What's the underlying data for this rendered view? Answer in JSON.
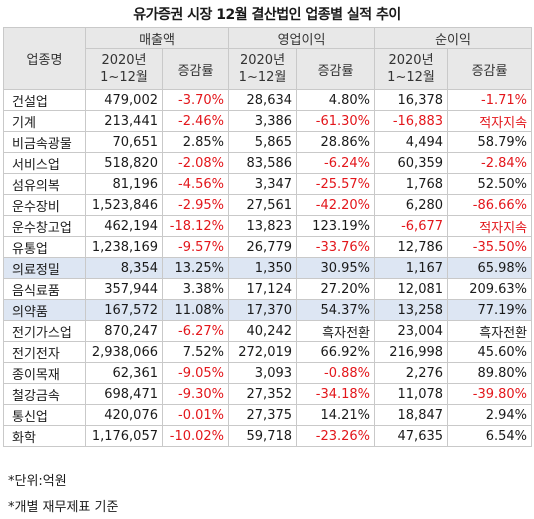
{
  "title": "유가증권 시장 12월 결산법인 업종별 실적 추이",
  "header": {
    "industry": "업종명",
    "groups": [
      "매출액",
      "영업이익",
      "순이익"
    ],
    "period_line1": "2020년",
    "period_line2": "1~12월",
    "change": "증감률"
  },
  "rows": [
    {
      "name": "건설업",
      "cells": [
        "479,002",
        "-3.70%",
        "28,634",
        "4.80%",
        "16,378",
        "-1.71%"
      ],
      "highlight": false
    },
    {
      "name": "기계",
      "cells": [
        "213,441",
        "-2.46%",
        "3,386",
        "-61.30%",
        "-16,883",
        "적자지속"
      ],
      "highlight": false
    },
    {
      "name": "비금속광물",
      "cells": [
        "70,651",
        "2.85%",
        "5,865",
        "28.86%",
        "4,494",
        "58.79%"
      ],
      "highlight": false
    },
    {
      "name": "서비스업",
      "cells": [
        "518,820",
        "-2.08%",
        "83,586",
        "-6.24%",
        "60,359",
        "-2.84%"
      ],
      "highlight": false
    },
    {
      "name": "섬유의복",
      "cells": [
        "81,196",
        "-4.56%",
        "3,347",
        "-25.57%",
        "1,768",
        "52.50%"
      ],
      "highlight": false
    },
    {
      "name": "운수장비",
      "cells": [
        "1,523,846",
        "-2.95%",
        "27,561",
        "-42.20%",
        "6,280",
        "-86.66%"
      ],
      "highlight": false
    },
    {
      "name": "운수창고업",
      "cells": [
        "462,194",
        "-18.12%",
        "13,823",
        "123.19%",
        "-6,677",
        "적자지속"
      ],
      "highlight": false
    },
    {
      "name": "유통업",
      "cells": [
        "1,238,169",
        "-9.57%",
        "26,779",
        "-33.76%",
        "12,786",
        "-35.50%"
      ],
      "highlight": false
    },
    {
      "name": "의료정밀",
      "cells": [
        "8,354",
        "13.25%",
        "1,350",
        "30.95%",
        "1,167",
        "65.98%"
      ],
      "highlight": true
    },
    {
      "name": "음식료품",
      "cells": [
        "357,944",
        "3.38%",
        "17,124",
        "27.20%",
        "12,081",
        "209.63%"
      ],
      "highlight": false
    },
    {
      "name": "의약품",
      "cells": [
        "167,572",
        "11.08%",
        "17,370",
        "54.37%",
        "13,258",
        "77.19%"
      ],
      "highlight": true
    },
    {
      "name": "전기가스업",
      "cells": [
        "870,247",
        "-6.27%",
        "40,242",
        "흑자전환",
        "23,004",
        "흑자전환"
      ],
      "highlight": false
    },
    {
      "name": "전기전자",
      "cells": [
        "2,938,066",
        "7.52%",
        "272,019",
        "66.92%",
        "216,998",
        "45.60%"
      ],
      "highlight": false
    },
    {
      "name": "종이목재",
      "cells": [
        "62,361",
        "-9.05%",
        "3,093",
        "-0.88%",
        "2,276",
        "89.80%"
      ],
      "highlight": false
    },
    {
      "name": "철강금속",
      "cells": [
        "698,471",
        "-9.30%",
        "27,352",
        "-34.18%",
        "11,078",
        "-39.80%"
      ],
      "highlight": false
    },
    {
      "name": "통신업",
      "cells": [
        "420,076",
        "-0.01%",
        "27,375",
        "14.21%",
        "18,847",
        "2.94%"
      ],
      "highlight": false
    },
    {
      "name": "화학",
      "cells": [
        "1,176,057",
        "-10.02%",
        "59,718",
        "-23.26%",
        "47,635",
        "6.54%"
      ],
      "highlight": false
    }
  ],
  "notes": [
    "*단위:억원",
    "*개별 재무제표 기준"
  ],
  "colors": {
    "negative": "#e3161b",
    "highlight_row": "#dde6f3",
    "header_bg": "#e8e8e8"
  }
}
